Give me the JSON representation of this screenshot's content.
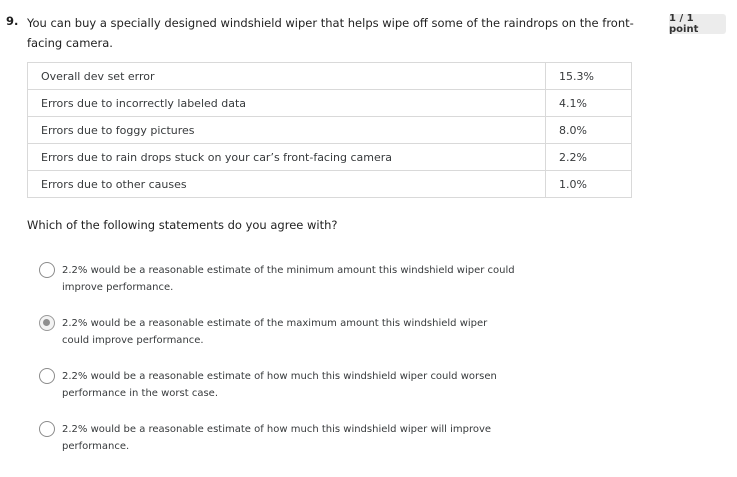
{
  "question": {
    "number": "9.",
    "text": "You can buy a specially designed windshield wiper that helps wipe off some of the raindrops on the front-facing camera.",
    "points": "1 / 1 point"
  },
  "table": {
    "rows": [
      {
        "label": "Overall dev set error",
        "value": "15.3%"
      },
      {
        "label": "Errors due to incorrectly labeled data",
        "value": "4.1%"
      },
      {
        "label": "Errors due to foggy pictures",
        "value": "8.0%"
      },
      {
        "label": "Errors due to rain drops stuck on your car’s front-facing camera",
        "value": "2.2%"
      },
      {
        "label": "Errors due to other causes",
        "value": "1.0%"
      }
    ]
  },
  "prompt": "Which of the following statements do you agree with?",
  "options": [
    {
      "text": "2.2% would be a reasonable estimate of the minimum amount this windshield wiper could improve performance.",
      "selected": false
    },
    {
      "text": "2.2% would be a reasonable estimate of the maximum amount this windshield wiper could improve performance.",
      "selected": true
    },
    {
      "text": "2.2% would be a reasonable estimate of how much this windshield wiper could worsen performance in the worst case.",
      "selected": false
    },
    {
      "text": "2.2% would be a reasonable estimate of how much this windshield wiper will improve performance.",
      "selected": false
    }
  ]
}
